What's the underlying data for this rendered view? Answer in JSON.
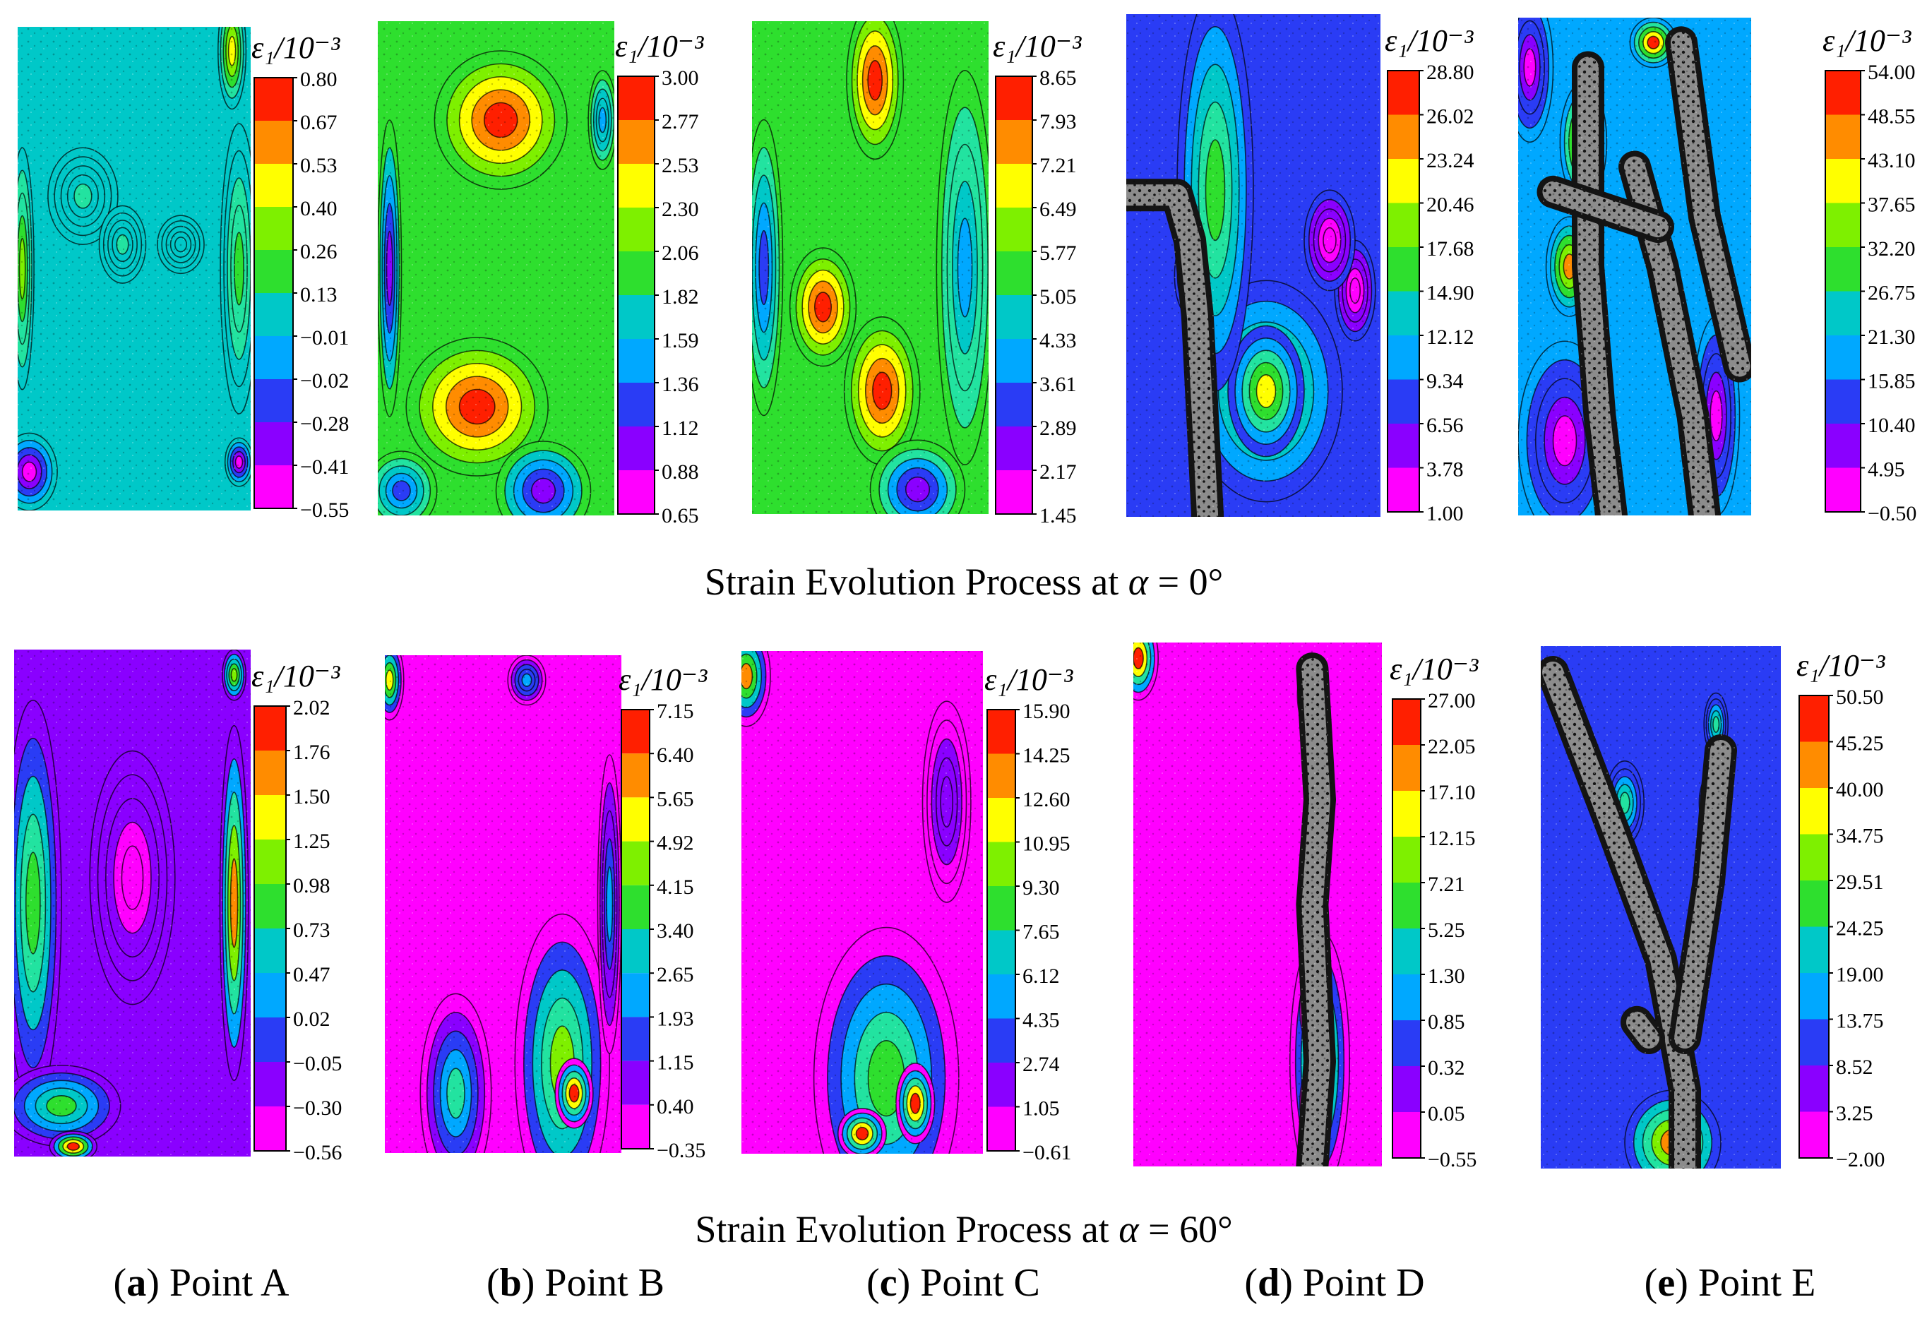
{
  "figure": {
    "colormap": [
      "#ff00ff",
      "#8a00ff",
      "#2a3cf5",
      "#00a8ff",
      "#00c8c8",
      "#22e3a0",
      "#2edf2e",
      "#7ef000",
      "#ffff00",
      "#ff8c00",
      "#ff1f00"
    ],
    "background_speckle": "#dcdcdc",
    "crack_gray": "#8c8c8c",
    "crack_dark": "#141414",
    "cbar_title": "ε₁/10⁻³",
    "row_captions": [
      {
        "prefix": "Strain Evolution Process at ",
        "symbol": "α",
        "suffix": " = 0°"
      },
      {
        "prefix": "Strain Evolution Process at ",
        "symbol": "α",
        "suffix": " = 60°"
      }
    ],
    "subcaptions": [
      {
        "letter": "a",
        "text": " Point A"
      },
      {
        "letter": "b",
        "text": " Point B"
      },
      {
        "letter": "c",
        "text": " Point C"
      },
      {
        "letter": "d",
        "text": " Point D"
      },
      {
        "letter": "e",
        "text": " Point E"
      }
    ],
    "panels": [
      {
        "id": "row1-a",
        "ticks": [
          "0.80",
          "0.67",
          "0.53",
          "0.40",
          "0.26",
          "0.13",
          "−0.01",
          "−0.02",
          "−0.28",
          "−0.41",
          "−0.55"
        ],
        "hotspots": [
          [
            0.5,
            0.45,
            0.55,
            0.45,
            0.38
          ],
          [
            0.28,
            0.35,
            0.15,
            0.1,
            0.45
          ],
          [
            0.45,
            0.45,
            0.1,
            0.08,
            0.45
          ],
          [
            0.95,
            0.5,
            0.08,
            0.3,
            0.55
          ],
          [
            0.02,
            0.5,
            0.05,
            0.25,
            0.7
          ],
          [
            0.92,
            0.05,
            0.06,
            0.12,
            0.75
          ],
          [
            0.05,
            0.92,
            0.12,
            0.08,
            0.05
          ],
          [
            0.95,
            0.9,
            0.06,
            0.05,
            0.05
          ],
          [
            0.7,
            0.45,
            0.1,
            0.06,
            0.35
          ]
        ],
        "cracks": []
      },
      {
        "id": "row1-b",
        "ticks": [
          "3.00",
          "2.77",
          "2.53",
          "2.30",
          "2.06",
          "1.82",
          "1.59",
          "1.36",
          "1.12",
          "0.88",
          "0.65"
        ],
        "hotspots": [
          [
            0.5,
            0.5,
            0.7,
            0.6,
            0.55
          ],
          [
            0.42,
            0.78,
            0.3,
            0.14,
            1.0
          ],
          [
            0.52,
            0.2,
            0.28,
            0.14,
            1.0
          ],
          [
            0.05,
            0.5,
            0.05,
            0.3,
            0.1
          ],
          [
            0.95,
            0.2,
            0.06,
            0.1,
            0.3
          ],
          [
            0.7,
            0.95,
            0.2,
            0.1,
            0.05
          ],
          [
            0.1,
            0.95,
            0.15,
            0.08,
            0.2
          ]
        ],
        "cracks": []
      },
      {
        "id": "row1-c",
        "ticks": [
          "8.65",
          "7.93",
          "7.21",
          "6.49",
          "5.77",
          "5.05",
          "4.33",
          "3.61",
          "2.89",
          "2.17",
          "1.45"
        ],
        "hotspots": [
          [
            0.45,
            0.55,
            0.45,
            0.9,
            0.62
          ],
          [
            0.3,
            0.58,
            0.14,
            0.12,
            1.0
          ],
          [
            0.55,
            0.75,
            0.16,
            0.15,
            1.0
          ],
          [
            0.52,
            0.12,
            0.12,
            0.16,
            1.0
          ],
          [
            0.05,
            0.5,
            0.08,
            0.3,
            0.2
          ],
          [
            0.9,
            0.5,
            0.12,
            0.4,
            0.3
          ],
          [
            0.7,
            0.95,
            0.2,
            0.1,
            0.05
          ]
        ],
        "cracks": []
      },
      {
        "id": "row1-d",
        "ticks": [
          "28.80",
          "26.02",
          "23.24",
          "20.46",
          "17.68",
          "14.90",
          "12.12",
          "9.34",
          "6.56",
          "3.78",
          "1.00"
        ],
        "hotspots": [
          [
            0.55,
            0.5,
            0.25,
            0.9,
            0.15
          ],
          [
            0.55,
            0.75,
            0.3,
            0.22,
            0.55
          ],
          [
            0.55,
            0.75,
            0.15,
            0.13,
            0.75
          ],
          [
            0.35,
            0.35,
            0.15,
            0.4,
            0.6
          ],
          [
            0.25,
            0.52,
            0.06,
            0.08,
            1.0
          ],
          [
            0.9,
            0.55,
            0.08,
            0.1,
            0.0
          ],
          [
            0.8,
            0.45,
            0.1,
            0.1,
            0.0
          ]
        ],
        "cracks": [
          [
            [
              0.0,
              0.36
            ],
            [
              0.2,
              0.36
            ],
            [
              0.25,
              0.45
            ],
            [
              0.28,
              0.6
            ],
            [
              0.3,
              0.8
            ],
            [
              0.32,
              1.0
            ]
          ]
        ]
      },
      {
        "id": "row1-e",
        "ticks": [
          "54.00",
          "48.55",
          "43.10",
          "37.65",
          "32.20",
          "26.75",
          "21.30",
          "15.85",
          "10.40",
          "4.95",
          "−0.50"
        ],
        "hotspots": [
          [
            0.4,
            0.5,
            0.3,
            0.7,
            0.3
          ],
          [
            0.28,
            0.25,
            0.1,
            0.12,
            0.9
          ],
          [
            0.22,
            0.5,
            0.1,
            0.1,
            0.85
          ],
          [
            0.58,
            0.05,
            0.1,
            0.05,
            1.0
          ],
          [
            0.2,
            0.85,
            0.2,
            0.2,
            0.0
          ],
          [
            0.85,
            0.8,
            0.1,
            0.2,
            0.0
          ],
          [
            0.05,
            0.1,
            0.1,
            0.15,
            0.0
          ]
        ],
        "cracks": [
          [
            [
              0.3,
              0.1
            ],
            [
              0.3,
              0.5
            ],
            [
              0.35,
              0.8
            ],
            [
              0.4,
              1.0
            ]
          ],
          [
            [
              0.5,
              0.3
            ],
            [
              0.62,
              0.5
            ],
            [
              0.75,
              0.8
            ],
            [
              0.8,
              1.0
            ]
          ],
          [
            [
              0.7,
              0.05
            ],
            [
              0.8,
              0.4
            ],
            [
              0.95,
              0.7
            ]
          ],
          [
            [
              0.15,
              0.35
            ],
            [
              0.6,
              0.42
            ]
          ]
        ]
      },
      {
        "id": "row2-a",
        "ticks": [
          "2.02",
          "1.76",
          "1.50",
          "1.25",
          "0.98",
          "0.73",
          "0.47",
          "0.02",
          "−0.05",
          "−0.30",
          "−0.56"
        ],
        "hotspots": [
          [
            0.5,
            0.5,
            0.6,
            0.6,
            0.12
          ],
          [
            0.08,
            0.5,
            0.12,
            0.4,
            0.6
          ],
          [
            0.93,
            0.5,
            0.06,
            0.35,
            0.9
          ],
          [
            0.5,
            0.45,
            0.18,
            0.25,
            0.0
          ],
          [
            0.2,
            0.9,
            0.25,
            0.08,
            0.55
          ],
          [
            0.25,
            0.98,
            0.1,
            0.03,
            1.0
          ],
          [
            0.93,
            0.05,
            0.05,
            0.05,
            0.7
          ]
        ],
        "cracks": []
      },
      {
        "id": "row2-b",
        "ticks": [
          "7.15",
          "6.40",
          "5.65",
          "4.92",
          "4.15",
          "3.40",
          "2.65",
          "1.93",
          "1.15",
          "0.40",
          "−0.35"
        ],
        "hotspots": [
          [
            0.4,
            0.45,
            0.35,
            0.45,
            0.0
          ],
          [
            0.75,
            0.82,
            0.2,
            0.3,
            0.7
          ],
          [
            0.8,
            0.88,
            0.08,
            0.07,
            1.0
          ],
          [
            0.3,
            0.88,
            0.15,
            0.2,
            0.45
          ],
          [
            0.02,
            0.05,
            0.06,
            0.08,
            0.8
          ],
          [
            0.95,
            0.5,
            0.05,
            0.3,
            0.25
          ],
          [
            0.6,
            0.05,
            0.08,
            0.05,
            0.3
          ]
        ],
        "cracks": []
      },
      {
        "id": "row2-c",
        "ticks": [
          "15.90",
          "14.25",
          "12.60",
          "10.95",
          "9.30",
          "7.65",
          "6.12",
          "4.35",
          "2.74",
          "1.05",
          "−0.61"
        ],
        "hotspots": [
          [
            0.4,
            0.45,
            0.35,
            0.5,
            0.0
          ],
          [
            0.6,
            0.85,
            0.3,
            0.3,
            0.6
          ],
          [
            0.72,
            0.9,
            0.08,
            0.08,
            1.0
          ],
          [
            0.5,
            0.96,
            0.1,
            0.05,
            1.0
          ],
          [
            0.02,
            0.05,
            0.1,
            0.1,
            0.85
          ],
          [
            0.85,
            0.3,
            0.1,
            0.2,
            0.12
          ]
        ],
        "cracks": []
      },
      {
        "id": "row2-d",
        "ticks": [
          "27.00",
          "22.05",
          "17.10",
          "12.15",
          "7.21",
          "5.25",
          "1.30",
          "0.85",
          "0.32",
          "0.05",
          "−0.55"
        ],
        "hotspots": [
          [
            0.3,
            0.5,
            0.35,
            0.6,
            0.0
          ],
          [
            0.75,
            0.8,
            0.12,
            0.25,
            0.75
          ],
          [
            0.72,
            0.7,
            0.05,
            0.07,
            1.0
          ],
          [
            0.72,
            0.88,
            0.05,
            0.07,
            1.0
          ],
          [
            0.02,
            0.03,
            0.08,
            0.08,
            1.0
          ],
          [
            0.72,
            0.1,
            0.06,
            0.07,
            0.35
          ]
        ],
        "cracks": [
          [
            [
              0.72,
              0.05
            ],
            [
              0.75,
              0.3
            ],
            [
              0.72,
              0.5
            ],
            [
              0.75,
              0.8
            ],
            [
              0.72,
              1.0
            ]
          ]
        ]
      },
      {
        "id": "row2-e",
        "ticks": [
          "50.50",
          "45.25",
          "40.00",
          "34.75",
          "29.51",
          "24.25",
          "19.00",
          "13.75",
          "8.52",
          "3.25",
          "−2.00"
        ],
        "hotspots": [
          [
            0.5,
            0.5,
            0.5,
            0.6,
            0.18
          ],
          [
            0.55,
            0.95,
            0.2,
            0.1,
            0.9
          ],
          [
            0.72,
            0.3,
            0.06,
            0.06,
            0.6
          ],
          [
            0.35,
            0.3,
            0.08,
            0.08,
            0.45
          ],
          [
            0.73,
            0.15,
            0.05,
            0.06,
            0.45
          ]
        ],
        "cracks": [
          [
            [
              0.05,
              0.05
            ],
            [
              0.3,
              0.35
            ],
            [
              0.5,
              0.6
            ],
            [
              0.6,
              0.85
            ],
            [
              0.6,
              1.0
            ]
          ],
          [
            [
              0.75,
              0.2
            ],
            [
              0.7,
              0.45
            ],
            [
              0.6,
              0.75
            ]
          ],
          [
            [
              0.4,
              0.72
            ],
            [
              0.45,
              0.75
            ]
          ]
        ]
      }
    ]
  }
}
